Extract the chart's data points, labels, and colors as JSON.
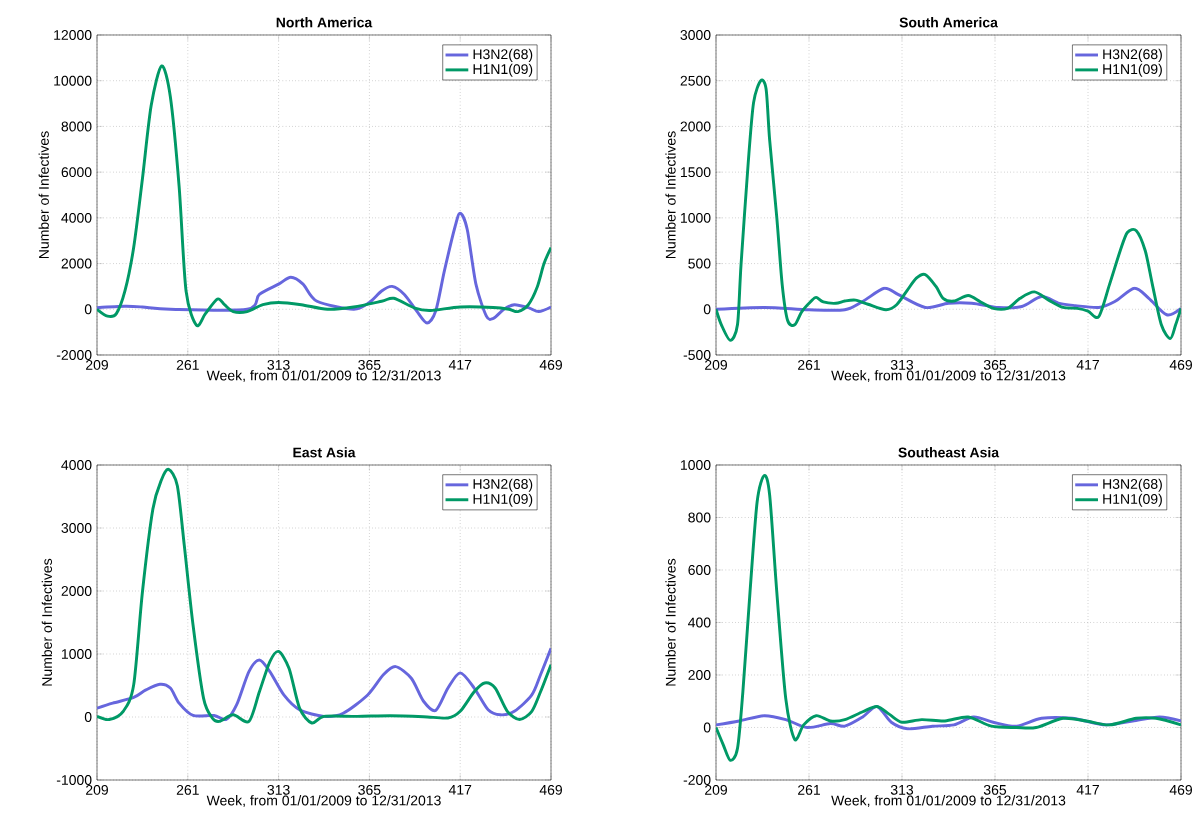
{
  "chart_data": [
    {
      "type": "line",
      "title": "North America",
      "xlabel": "Week, from 01/01/2009 to 12/31/2013",
      "ylabel": "Number of Infectives",
      "xlim": [
        209,
        469
      ],
      "xticks": [
        209,
        261,
        313,
        365,
        417,
        469
      ],
      "ylim": [
        -2000,
        12000
      ],
      "yticks": [
        -2000,
        0,
        2000,
        4000,
        6000,
        8000,
        10000,
        12000
      ],
      "grid": true,
      "legend": "top right",
      "series": [
        {
          "name": "H3N2(68)",
          "color": "#6666dd",
          "x": [
            209,
            225,
            235,
            251,
            295,
            302,
            313,
            320,
            327,
            335,
            356,
            365,
            372,
            378,
            385,
            392,
            398,
            403,
            408,
            414,
            417,
            421,
            426,
            432,
            436,
            442,
            448,
            456,
            462,
            469
          ],
          "values": [
            70,
            130,
            100,
            0,
            0,
            650,
            1100,
            1400,
            1100,
            350,
            0,
            300,
            800,
            1000,
            650,
            -70,
            -600,
            -70,
            1700,
            3600,
            4200,
            3500,
            1100,
            -300,
            -400,
            0,
            200,
            70,
            -100,
            100
          ]
        },
        {
          "name": "H1N1(09)",
          "color": "#009966",
          "x": [
            209,
            215,
            220,
            225,
            230,
            235,
            240,
            246,
            251,
            256,
            260,
            266,
            271,
            278,
            282,
            287,
            295,
            304,
            313,
            326,
            341,
            356,
            372,
            379,
            391,
            400,
            417,
            436,
            445,
            450,
            456,
            461,
            465,
            469
          ],
          "values": [
            0,
            -300,
            -200,
            800,
            2700,
            5700,
            8900,
            10650,
            9300,
            5400,
            800,
            -700,
            -200,
            450,
            200,
            -100,
            -100,
            200,
            300,
            200,
            0,
            100,
            350,
            480,
            50,
            -50,
            100,
            80,
            0,
            -100,
            200,
            950,
            2000,
            2700
          ]
        }
      ]
    },
    {
      "type": "line",
      "title": "South America",
      "xlabel": "Week, from 01/01/2009 to 12/31/2013",
      "ylabel": "Number of Infectives",
      "xlim": [
        209,
        469
      ],
      "xticks": [
        209,
        261,
        313,
        365,
        417,
        469
      ],
      "ylim": [
        -500,
        3000
      ],
      "yticks": [
        -500,
        0,
        500,
        1000,
        1500,
        2000,
        2500,
        3000
      ],
      "grid": true,
      "legend": "top right",
      "series": [
        {
          "name": "H3N2(68)",
          "color": "#6666dd",
          "x": [
            209,
            236,
            261,
            281,
            291,
            303,
            311,
            326,
            339,
            352,
            367,
            380,
            391,
            401,
            410,
            423,
            432,
            443,
            451,
            461,
            469
          ],
          "values": [
            0,
            20,
            -5,
            -5,
            85,
            230,
            160,
            20,
            65,
            65,
            20,
            30,
            140,
            65,
            40,
            20,
            85,
            230,
            120,
            -60,
            10
          ]
        },
        {
          "name": "H1N1(09)",
          "color": "#009966",
          "x": [
            209,
            212,
            217,
            221,
            223,
            227,
            230,
            234,
            237,
            239,
            243,
            246,
            249,
            253,
            257,
            262,
            265,
            269,
            276,
            281,
            287,
            294,
            304,
            310,
            316,
            321,
            326,
            332,
            336,
            342,
            350,
            357,
            364,
            372,
            379,
            387,
            395,
            403,
            411,
            417,
            423,
            429,
            435,
            439,
            444,
            449,
            453,
            458,
            463,
            466,
            469
          ],
          "values": [
            0,
            -170,
            -340,
            -170,
            490,
            1600,
            2260,
            2500,
            2410,
            1850,
            1000,
            270,
            -120,
            -170,
            -25,
            85,
            130,
            80,
            65,
            90,
            100,
            55,
            -5,
            50,
            210,
            340,
            380,
            250,
            120,
            90,
            150,
            80,
            10,
            10,
            120,
            190,
            100,
            20,
            10,
            -20,
            -80,
            270,
            640,
            840,
            860,
            640,
            270,
            -170,
            -320,
            -170,
            10
          ]
        }
      ]
    },
    {
      "type": "line",
      "title": "East Asia",
      "xlabel": "Week, from 01/01/2009 to 12/31/2013",
      "ylabel": "Number of Infectives",
      "xlim": [
        209,
        469
      ],
      "xticks": [
        209,
        261,
        313,
        365,
        417,
        469
      ],
      "ylim": [
        -1000,
        4000
      ],
      "yticks": [
        -1000,
        0,
        1000,
        2000,
        3000,
        4000
      ],
      "grid": true,
      "legend": "top right",
      "series": [
        {
          "name": "H3N2(68)",
          "color": "#6666dd",
          "x": [
            209,
            218,
            230,
            237,
            245,
            251,
            256,
            264,
            276,
            283,
            289,
            296,
            302,
            308,
            316,
            325,
            339,
            350,
            364,
            373,
            380,
            389,
            396,
            403,
            410,
            417,
            425,
            433,
            440,
            448,
            458,
            463,
            469
          ],
          "values": [
            140,
            220,
            310,
            430,
            520,
            460,
            220,
            25,
            25,
            -40,
            195,
            720,
            905,
            720,
            350,
            115,
            10,
            60,
            350,
            670,
            800,
            615,
            250,
            105,
            460,
            700,
            460,
            115,
            35,
            90,
            350,
            670,
            1090
          ]
        },
        {
          "name": "H1N1(09)",
          "color": "#009966",
          "x": [
            209,
            216,
            224,
            230,
            235,
            241,
            246,
            250,
            255,
            259,
            264,
            270,
            275,
            279,
            287,
            296,
            302,
            308,
            313,
            319,
            325,
            332,
            339,
            358,
            377,
            396,
            410,
            417,
            425,
            431,
            437,
            444,
            451,
            458,
            463,
            469
          ],
          "values": [
            10,
            -40,
            90,
            510,
            1980,
            3300,
            3770,
            3930,
            3670,
            2720,
            1460,
            300,
            -15,
            -70,
            35,
            -70,
            400,
            880,
            1040,
            770,
            140,
            -95,
            10,
            10,
            20,
            5,
            -15,
            90,
            400,
            540,
            460,
            90,
            -40,
            90,
            400,
            830
          ]
        }
      ]
    },
    {
      "type": "line",
      "title": "Southeast Asia",
      "xlabel": "Week, from 01/01/2009 to 12/31/2013",
      "ylabel": "Number of Infectives",
      "xlim": [
        209,
        469
      ],
      "xticks": [
        209,
        261,
        313,
        365,
        417,
        469
      ],
      "ylim": [
        -200,
        1000
      ],
      "yticks": [
        -200,
        0,
        200,
        400,
        600,
        800,
        1000
      ],
      "grid": true,
      "legend": "top right",
      "series": [
        {
          "name": "H3N2(68)",
          "color": "#6666dd",
          "x": [
            209,
            222,
            236,
            248,
            260,
            273,
            281,
            291,
            299,
            307,
            316,
            330,
            342,
            353,
            364,
            377,
            391,
            408,
            427,
            442,
            457,
            469
          ],
          "values": [
            10,
            25,
            45,
            30,
            0,
            15,
            5,
            40,
            80,
            20,
            -5,
            5,
            10,
            40,
            20,
            5,
            35,
            35,
            10,
            25,
            40,
            25
          ]
        },
        {
          "name": "H1N1(09)",
          "color": "#009966",
          "x": [
            209,
            213,
            217,
            221,
            224,
            228,
            232,
            236,
            239,
            243,
            248,
            253,
            258,
            265,
            273,
            281,
            291,
            299,
            306,
            313,
            324,
            337,
            350,
            363,
            377,
            388,
            403,
            416,
            429,
            444,
            455,
            469
          ],
          "values": [
            0,
            -65,
            -125,
            -80,
            135,
            515,
            860,
            960,
            885,
            515,
            110,
            -45,
            10,
            45,
            25,
            30,
            60,
            80,
            50,
            20,
            30,
            25,
            40,
            5,
            0,
            0,
            35,
            25,
            10,
            35,
            35,
            10
          ]
        }
      ]
    }
  ]
}
